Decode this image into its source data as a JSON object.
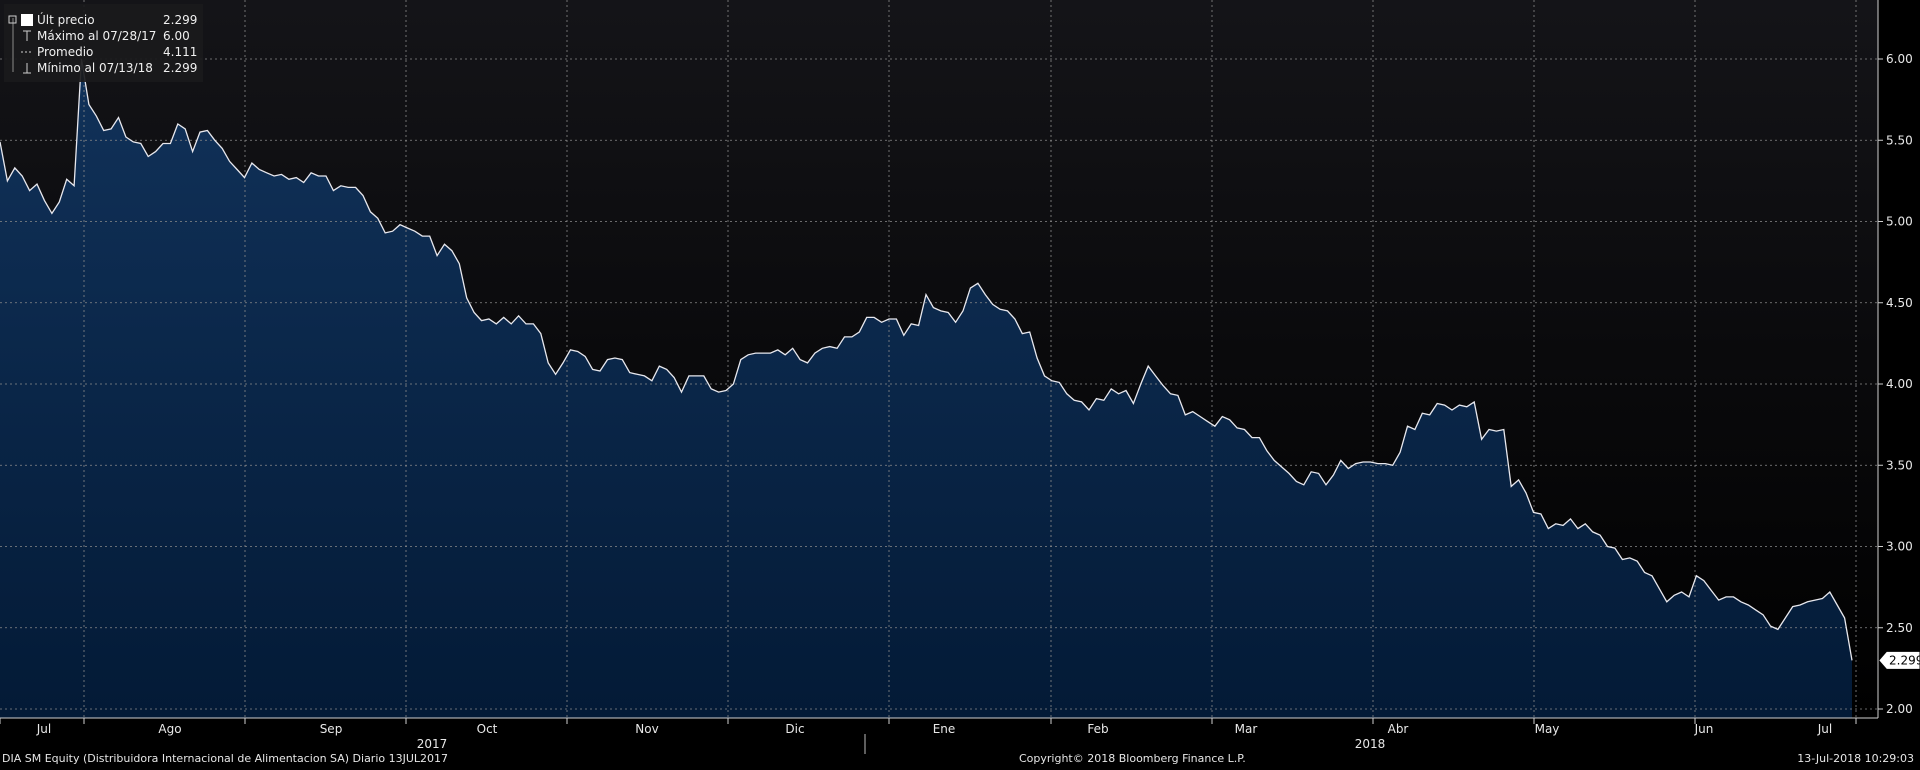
{
  "chart_data": {
    "type": "area",
    "ylim": [
      1.95,
      6.4
    ],
    "y_ticks": [
      "2.00",
      "2.50",
      "3.00",
      "3.50",
      "4.00",
      "4.50",
      "5.00",
      "5.50",
      "6.00"
    ],
    "x_labels": [
      "Jul",
      "Ago",
      "Sep",
      "Oct",
      "Nov",
      "Dic",
      "Ene",
      "Feb",
      "Mar",
      "Abr",
      "May",
      "Jun",
      "Jul"
    ],
    "year_labels": [
      "2017",
      "2018"
    ],
    "last_value_label": "2.299",
    "grid": true,
    "legend_position": "top-left",
    "legend": [
      {
        "label": "Últ precio",
        "value": "2.299",
        "marker": "filled-square"
      },
      {
        "label": "Máximo al 07/28/17",
        "value": "6.00",
        "marker": "t-top"
      },
      {
        "label": "Promedio",
        "value": "4.111",
        "marker": "dash"
      },
      {
        "label": "Mínimo al 07/13/18",
        "value": "2.299",
        "marker": "t-bottom"
      }
    ],
    "series": [
      {
        "values": [
          5.49,
          5.25,
          5.33,
          5.28,
          5.19,
          5.23,
          5.13,
          5.05,
          5.12,
          5.26,
          5.22,
          6.0,
          5.72,
          5.65,
          5.56,
          5.57,
          5.64,
          5.52,
          5.49,
          5.48,
          5.4,
          5.43,
          5.48,
          5.48,
          5.6,
          5.57,
          5.43,
          5.55,
          5.56,
          5.5,
          5.45,
          5.37,
          5.32,
          5.27,
          5.36,
          5.32,
          5.3,
          5.28,
          5.29,
          5.26,
          5.27,
          5.24,
          5.3,
          5.28,
          5.28,
          5.19,
          5.22,
          5.21,
          5.21,
          5.16,
          5.06,
          5.02,
          4.93,
          4.94,
          4.98,
          4.96,
          4.94,
          4.91,
          4.91,
          4.79,
          4.86,
          4.82,
          4.74,
          4.53,
          4.44,
          4.39,
          4.4,
          4.37,
          4.41,
          4.37,
          4.42,
          4.37,
          4.37,
          4.31,
          4.13,
          4.06,
          4.13,
          4.21,
          4.2,
          4.17,
          4.09,
          4.08,
          4.15,
          4.16,
          4.15,
          4.07,
          4.06,
          4.05,
          4.02,
          4.11,
          4.09,
          4.04,
          3.95,
          4.05,
          4.05,
          4.05,
          3.97,
          3.95,
          3.96,
          4.0,
          4.15,
          4.18,
          4.19,
          4.19,
          4.19,
          4.21,
          4.18,
          4.22,
          4.15,
          4.13,
          4.19,
          4.22,
          4.23,
          4.22,
          4.29,
          4.29,
          4.32,
          4.41,
          4.41,
          4.38,
          4.4,
          4.4,
          4.3,
          4.37,
          4.36,
          4.55,
          4.47,
          4.45,
          4.44,
          4.38,
          4.45,
          4.59,
          4.62,
          4.55,
          4.49,
          4.46,
          4.45,
          4.4,
          4.31,
          4.32,
          4.16,
          4.05,
          4.02,
          4.01,
          3.94,
          3.9,
          3.89,
          3.84,
          3.91,
          3.9,
          3.97,
          3.94,
          3.96,
          3.88,
          4.0,
          4.11,
          4.05,
          3.99,
          3.94,
          3.93,
          3.81,
          3.83,
          3.8,
          3.77,
          3.74,
          3.8,
          3.78,
          3.73,
          3.72,
          3.67,
          3.67,
          3.59,
          3.53,
          3.49,
          3.45,
          3.4,
          3.38,
          3.46,
          3.45,
          3.38,
          3.44,
          3.53,
          3.48,
          3.51,
          3.52,
          3.52,
          3.51,
          3.51,
          3.5,
          3.58,
          3.74,
          3.72,
          3.82,
          3.81,
          3.88,
          3.87,
          3.84,
          3.87,
          3.86,
          3.89,
          3.66,
          3.72,
          3.71,
          3.72,
          3.37,
          3.41,
          3.33,
          3.21,
          3.2,
          3.11,
          3.14,
          3.13,
          3.17,
          3.11,
          3.14,
          3.09,
          3.07,
          3.0,
          2.99,
          2.92,
          2.93,
          2.91,
          2.84,
          2.82,
          2.74,
          2.66,
          2.7,
          2.72,
          2.69,
          2.82,
          2.79,
          2.73,
          2.67,
          2.69,
          2.69,
          2.66,
          2.64,
          2.61,
          2.58,
          2.51,
          2.49,
          2.56,
          2.63,
          2.64,
          2.66,
          2.67,
          2.68,
          2.72,
          2.64,
          2.56,
          2.299
        ]
      }
    ]
  },
  "footer": {
    "left": "DIA SM Equity (Distribuidora Internacional de Alimentacion SA)  Diario 13JUL2017",
    "center": "Copyright© 2018 Bloomberg Finance L.P.",
    "right": "13-Jul-2018 10:29:03"
  },
  "colors": {
    "background": "#000000",
    "plot_background_top": "#141418",
    "plot_background_bottom": "#000000",
    "area_top": "#11325a",
    "area_bottom": "#031a36",
    "line": "#e8e8ee",
    "grid": "#8a8a8a"
  }
}
